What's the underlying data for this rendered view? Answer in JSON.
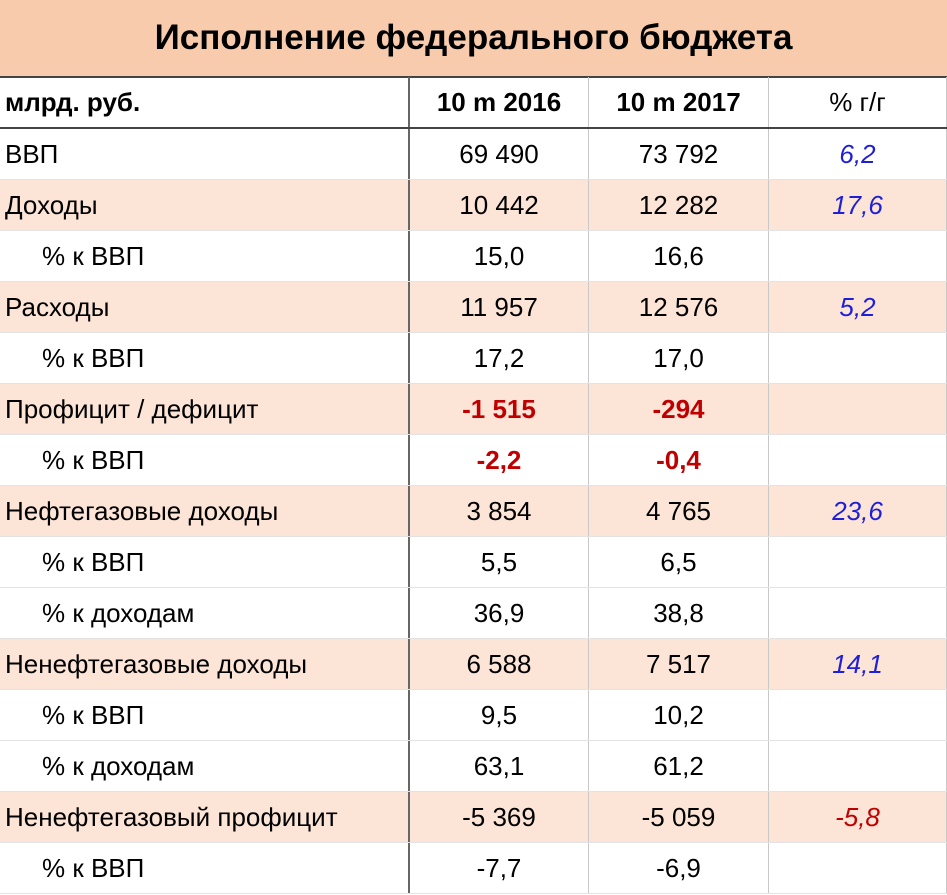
{
  "title": "Исполнение федерального бюджета",
  "header": {
    "unit": "млрд. руб.",
    "col1": "10 m 2016",
    "col2": "10 m 2017",
    "col3": "% г/г"
  },
  "rows": [
    {
      "label": "ВВП",
      "v1": "69 490",
      "v2": "73 792",
      "pct": "6,2"
    },
    {
      "label": "Доходы",
      "v1": "10 442",
      "v2": "12 282",
      "pct": "17,6"
    },
    {
      "label": "% к ВВП",
      "v1": "15,0",
      "v2": "16,6",
      "pct": ""
    },
    {
      "label": "Расходы",
      "v1": "11 957",
      "v2": "12 576",
      "pct": "5,2"
    },
    {
      "label": "% к ВВП",
      "v1": "17,2",
      "v2": "17,0",
      "pct": ""
    },
    {
      "label": "Профицит / дефицит",
      "v1": "-1 515",
      "v2": "-294",
      "pct": ""
    },
    {
      "label": "% к ВВП",
      "v1": "-2,2",
      "v2": "-0,4",
      "pct": ""
    },
    {
      "label": "Нефтегазовые доходы",
      "v1": "3 854",
      "v2": "4 765",
      "pct": "23,6"
    },
    {
      "label": "% к ВВП",
      "v1": "5,5",
      "v2": "6,5",
      "pct": ""
    },
    {
      "label": "% к доходам",
      "v1": "36,9",
      "v2": "38,8",
      "pct": ""
    },
    {
      "label": "Ненефтегазовые доходы",
      "v1": "6 588",
      "v2": "7 517",
      "pct": "14,1"
    },
    {
      "label": "% к ВВП",
      "v1": "9,5",
      "v2": "10,2",
      "pct": ""
    },
    {
      "label": "% к доходам",
      "v1": "63,1",
      "v2": "61,2",
      "pct": ""
    },
    {
      "label": "Ненефтегазовый профицит",
      "v1": "-5 369",
      "v2": "-5 059",
      "pct": "-5,8"
    },
    {
      "label": "% к ВВП",
      "v1": "-7,7",
      "v2": "-6,9",
      "pct": ""
    }
  ],
  "colors": {
    "title_bg": "#f8cbad",
    "row_shade": "#fce4d6",
    "negative_red": "#c00000",
    "growth_blue": "#1f1fd6"
  }
}
